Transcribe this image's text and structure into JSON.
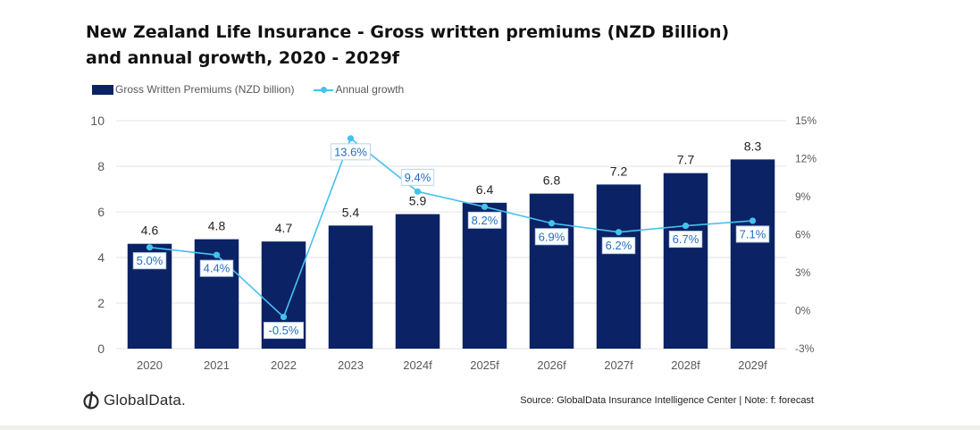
{
  "title": {
    "line1": "New Zealand Life Insurance - Gross written premiums (NZD Billion)",
    "line2": "and annual growth, 2020 - 2029f"
  },
  "legend": {
    "bar_label": "Gross Written Premiums (NZD billion)",
    "line_label": "Annual growth"
  },
  "colors": {
    "bar": "#0b2265",
    "line": "#45c2ee",
    "line_label_text": "#1f6fc1",
    "axis_text": "#595959"
  },
  "chart_data": {
    "type": "bar",
    "categories": [
      "2020",
      "2021",
      "2022",
      "2023",
      "2024f",
      "2025f",
      "2026f",
      "2027f",
      "2028f",
      "2029f"
    ],
    "series": [
      {
        "name": "Gross Written Premiums (NZD billion)",
        "type": "bar",
        "axis": "left",
        "values": [
          4.6,
          4.8,
          4.7,
          5.4,
          5.9,
          6.4,
          6.8,
          7.2,
          7.7,
          8.3
        ],
        "labels": [
          "4.6",
          "4.8",
          "4.7",
          "5.4",
          "5.9",
          "6.4",
          "6.8",
          "7.2",
          "7.7",
          "8.3"
        ]
      },
      {
        "name": "Annual growth",
        "type": "line",
        "axis": "right",
        "values": [
          5.0,
          4.4,
          -0.5,
          13.6,
          9.4,
          8.2,
          6.9,
          6.2,
          6.7,
          7.1
        ],
        "labels": [
          "5.0%",
          "4.4%",
          "-0.5%",
          "13.6%",
          "9.4%",
          "8.2%",
          "6.9%",
          "6.2%",
          "6.7%",
          "7.1%"
        ]
      }
    ],
    "y_left": {
      "range": [
        0,
        10
      ],
      "ticks": [
        "0",
        "2",
        "4",
        "6",
        "8",
        "10"
      ]
    },
    "y_right": {
      "range": [
        -3,
        15
      ],
      "ticks": [
        "-3%",
        "0%",
        "3%",
        "6%",
        "9%",
        "12%",
        "15%"
      ]
    },
    "grid": true,
    "legend_position": "top-left"
  },
  "footer": {
    "source": "Source: GlobalData Insurance Intelligence Center | Note: f: forecast",
    "logo_text": "GlobalData."
  }
}
